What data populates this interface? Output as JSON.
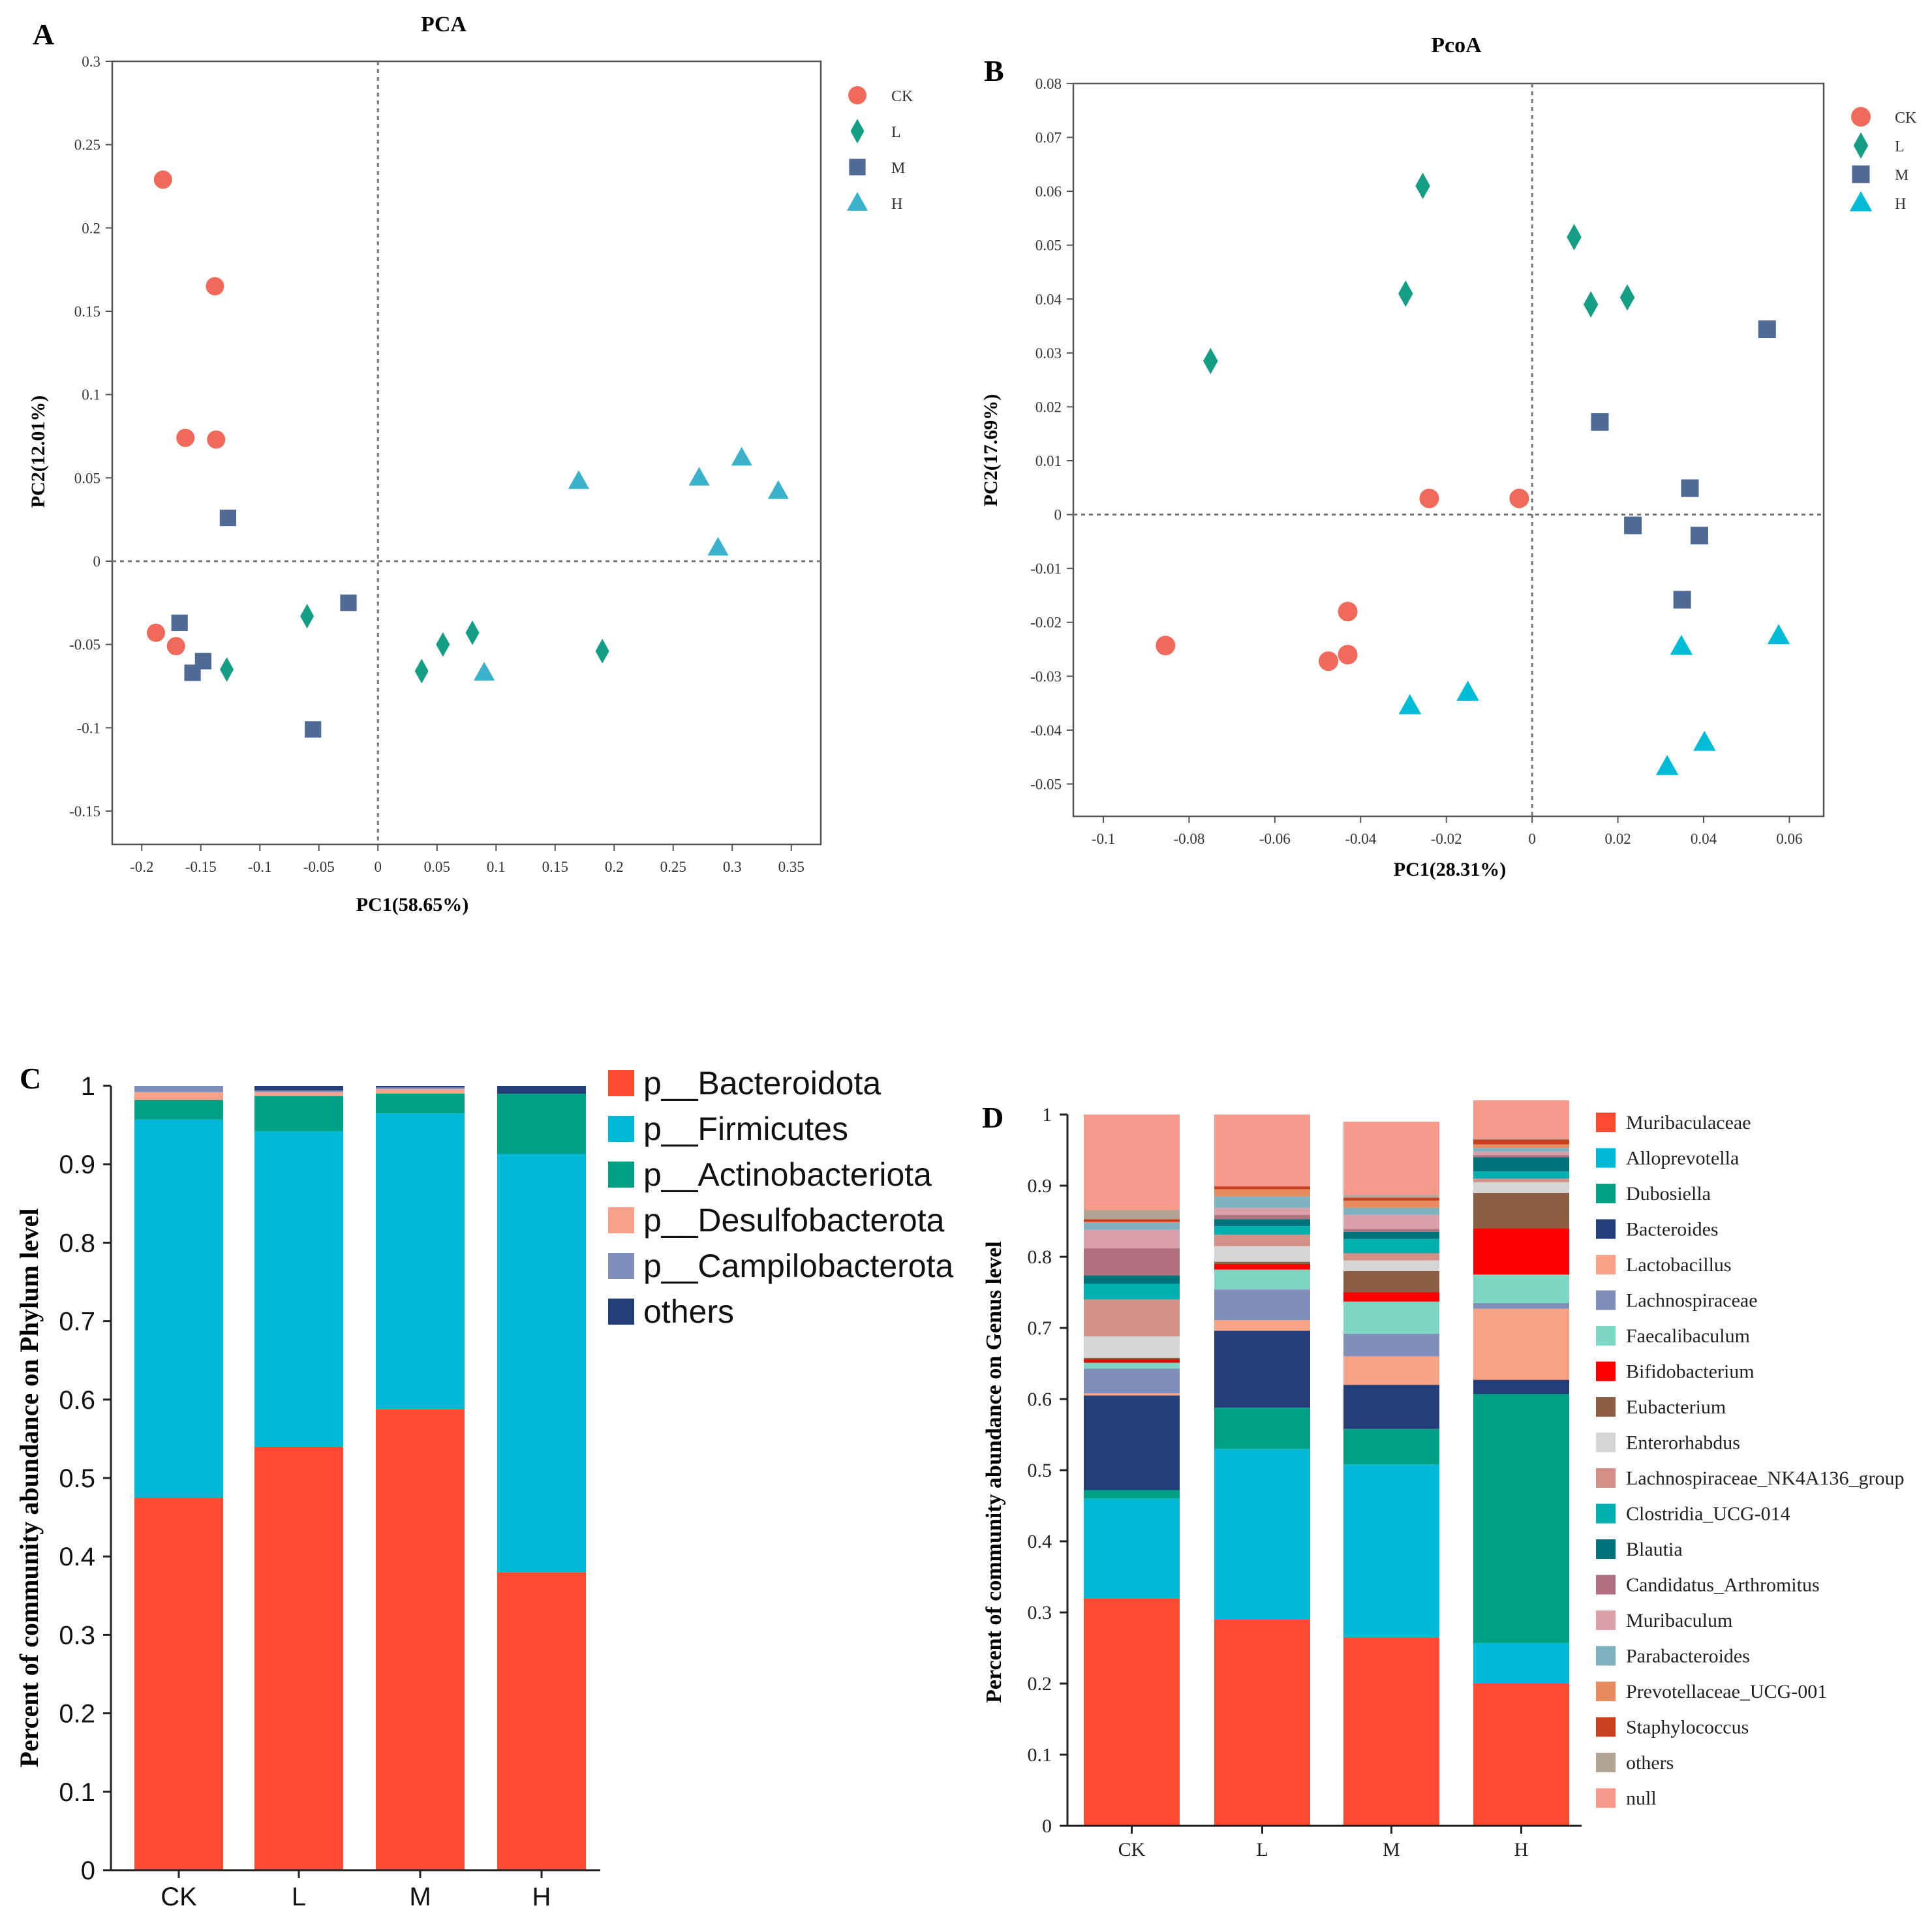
{
  "chart_data": [
    {
      "type": "scatter",
      "panel": "A",
      "title": "PCA",
      "xlabel": "PC1(58.65%)",
      "ylabel": "PC2(12.01%)",
      "xlim": [
        -0.225,
        0.375
      ],
      "ylim": [
        -0.17,
        0.3
      ],
      "xticks": [
        -0.2,
        -0.15,
        -0.1,
        -0.05,
        0,
        0.05,
        0.1,
        0.15,
        0.2,
        0.25,
        0.3,
        0.35
      ],
      "yticks": [
        -0.15,
        -0.1,
        -0.05,
        0,
        0.05,
        0.1,
        0.15,
        0.2,
        0.25,
        0.3
      ],
      "series": [
        {
          "name": "CK",
          "marker": "circle",
          "color": "#F0695A",
          "points": [
            [
              -0.182,
              0.229
            ],
            [
              -0.138,
              0.165
            ],
            [
              -0.163,
              0.074
            ],
            [
              -0.137,
              0.073
            ],
            [
              -0.188,
              -0.043
            ],
            [
              -0.171,
              -0.051
            ]
          ]
        },
        {
          "name": "L",
          "marker": "diamond",
          "color": "#139E85",
          "points": [
            [
              -0.128,
              -0.065
            ],
            [
              -0.06,
              -0.033
            ],
            [
              0.037,
              -0.066
            ],
            [
              0.055,
              -0.05
            ],
            [
              0.08,
              -0.043
            ],
            [
              0.19,
              -0.054
            ]
          ]
        },
        {
          "name": "M",
          "marker": "square",
          "color": "#4F6A96",
          "points": [
            [
              -0.127,
              0.026
            ],
            [
              -0.025,
              -0.025
            ],
            [
              -0.168,
              -0.037
            ],
            [
              -0.148,
              -0.06
            ],
            [
              -0.157,
              -0.067
            ],
            [
              -0.055,
              -0.101
            ]
          ]
        },
        {
          "name": "H",
          "marker": "triangle",
          "color": "#3BB2CB",
          "points": [
            [
              0.17,
              0.048
            ],
            [
              0.272,
              0.05
            ],
            [
              0.308,
              0.062
            ],
            [
              0.339,
              0.042
            ],
            [
              0.288,
              0.008
            ],
            [
              0.09,
              -0.067
            ]
          ]
        }
      ]
    },
    {
      "type": "scatter",
      "panel": "B",
      "title": "PcoA",
      "xlabel": "PC1(28.31%)",
      "ylabel": "PC2(17.69%)",
      "xlim": [
        -0.107,
        0.068
      ],
      "ylim": [
        -0.056,
        0.08
      ],
      "xticks": [
        -0.1,
        -0.08,
        -0.06,
        -0.04,
        -0.02,
        0,
        0.02,
        0.04,
        0.06
      ],
      "yticks": [
        0.08,
        0.07,
        0.06,
        0.05,
        0.04,
        0.03,
        0.02,
        0.01,
        0,
        -0.01,
        -0.02,
        -0.03,
        -0.04,
        -0.05
      ],
      "series": [
        {
          "name": "CK",
          "marker": "circle",
          "color": "#F0695A",
          "points": [
            [
              -0.0855,
              -0.0243
            ],
            [
              -0.0475,
              -0.0272
            ],
            [
              -0.043,
              -0.026
            ],
            [
              -0.043,
              -0.018
            ],
            [
              -0.024,
              0.003
            ],
            [
              -0.003,
              0.003
            ]
          ]
        },
        {
          "name": "L",
          "marker": "diamond",
          "color": "#139E85",
          "points": [
            [
              -0.075,
              0.0285
            ],
            [
              -0.0295,
              0.041
            ],
            [
              -0.0255,
              0.061
            ],
            [
              0.0098,
              0.0515
            ],
            [
              0.0137,
              0.039
            ],
            [
              0.0222,
              0.0403
            ]
          ]
        },
        {
          "name": "M",
          "marker": "square",
          "color": "#4F6A96",
          "points": [
            [
              0.0548,
              0.0344
            ],
            [
              0.0158,
              0.0172
            ],
            [
              0.0368,
              0.0049
            ],
            [
              0.0235,
              -0.002
            ],
            [
              0.039,
              -0.0039
            ],
            [
              0.035,
              -0.0158
            ]
          ]
        },
        {
          "name": "H",
          "marker": "triangle",
          "color": "#00BCD6",
          "points": [
            [
              -0.0285,
              -0.0355
            ],
            [
              -0.015,
              -0.033
            ],
            [
              0.0348,
              -0.0245
            ],
            [
              0.0575,
              -0.0225
            ],
            [
              0.0402,
              -0.0423
            ],
            [
              0.0315,
              -0.0468
            ]
          ]
        }
      ]
    },
    {
      "type": "stacked_bar",
      "panel": "C",
      "title": "",
      "xlabel": "",
      "ylabel": "Percent of community abundance on Phylum level",
      "ylim": [
        0,
        1
      ],
      "yticks": [
        "0",
        "0.1",
        "0.2",
        "0.3",
        "0.4",
        "0.5",
        "0.6",
        "0.7",
        "0.8",
        "0.9",
        "1"
      ],
      "categories": [
        "CK",
        "L",
        "M",
        "H"
      ],
      "series": [
        {
          "name": "p__Bacteroidota",
          "color": "#FE4A31",
          "values": [
            0.475,
            0.54,
            0.588,
            0.38
          ]
        },
        {
          "name": "p__Firmicutes",
          "color": "#00B9D6",
          "values": [
            0.482,
            0.402,
            0.377,
            0.533
          ]
        },
        {
          "name": "p__Actinobacteriota",
          "color": "#00A085",
          "values": [
            0.025,
            0.045,
            0.025,
            0.077
          ]
        },
        {
          "name": "p__Desulfobacterota",
          "color": "#F7A08A",
          "values": [
            0.01,
            0.005,
            0.006,
            0.0
          ]
        },
        {
          "name": "p__Campilobacterota",
          "color": "#7E8FBB",
          "values": [
            0.008,
            0.002,
            0.002,
            0.0
          ]
        },
        {
          "name": "others",
          "color": "#233E79",
          "values": [
            0.0,
            0.006,
            0.002,
            0.01
          ]
        }
      ]
    },
    {
      "type": "stacked_bar",
      "panel": "D",
      "title": "",
      "xlabel": "",
      "ylabel": "Percent of community abundance on Genus level",
      "ylim": [
        0,
        1
      ],
      "yticks": [
        "0",
        "0.1",
        "0.2",
        "0.3",
        "0.4",
        "0.5",
        "0.6",
        "0.7",
        "0.8",
        "0.9",
        "1"
      ],
      "categories": [
        "CK",
        "L",
        "M",
        "H"
      ],
      "series": [
        {
          "name": "Muribaculaceae",
          "color": "#FE4A31",
          "values": [
            0.32,
            0.29,
            0.265,
            0.2
          ]
        },
        {
          "name": "Alloprevotella",
          "color": "#00B9D6",
          "values": [
            0.14,
            0.24,
            0.243,
            0.057
          ]
        },
        {
          "name": "Dubosiella",
          "color": "#00A085",
          "values": [
            0.012,
            0.058,
            0.05,
            0.35
          ]
        },
        {
          "name": "Bacteroides",
          "color": "#233E79",
          "values": [
            0.133,
            0.108,
            0.062,
            0.02
          ]
        },
        {
          "name": "Lactobacillus",
          "color": "#F8A286",
          "values": [
            0.003,
            0.015,
            0.04,
            0.1
          ]
        },
        {
          "name": "Lachnospiraceae",
          "color": "#7F8FBA",
          "values": [
            0.035,
            0.043,
            0.032,
            0.008
          ]
        },
        {
          "name": "Faecalibaculum",
          "color": "#7ED6C5",
          "values": [
            0.008,
            0.028,
            0.045,
            0.04
          ]
        },
        {
          "name": "Bifidobacterium",
          "color": "#FF0000",
          "values": [
            0.005,
            0.008,
            0.013,
            0.065
          ]
        },
        {
          "name": "Eubacterium",
          "color": "#8C5F45",
          "values": [
            0.002,
            0.003,
            0.03,
            0.05
          ]
        },
        {
          "name": "Enterorhabdus",
          "color": "#D5D5D5",
          "values": [
            0.03,
            0.022,
            0.015,
            0.015
          ]
        },
        {
          "name": "Lachnospiraceae_NK4A136_group",
          "color": "#D49087",
          "values": [
            0.052,
            0.016,
            0.01,
            0.005
          ]
        },
        {
          "name": "Clostridia_UCG-014",
          "color": "#00AFAF",
          "values": [
            0.022,
            0.012,
            0.02,
            0.01
          ]
        },
        {
          "name": "Blautia",
          "color": "#00727A",
          "values": [
            0.012,
            0.01,
            0.01,
            0.02
          ]
        },
        {
          "name": "Candidatus_Arthromitus",
          "color": "#B07080",
          "values": [
            0.038,
            0.006,
            0.004,
            0.003
          ]
        },
        {
          "name": "Muribaculum",
          "color": "#D9A0AA",
          "values": [
            0.026,
            0.01,
            0.02,
            0.005
          ]
        },
        {
          "name": "Parabacteroides",
          "color": "#7FB2BF",
          "values": [
            0.01,
            0.016,
            0.01,
            0.005
          ]
        },
        {
          "name": "Prevotellaceae_UCG-001",
          "color": "#E88A60",
          "values": [
            0.001,
            0.01,
            0.01,
            0.005
          ]
        },
        {
          "name": "Staphylococcus",
          "color": "#C84020",
          "values": [
            0.004,
            0.004,
            0.004,
            0.007
          ]
        },
        {
          "name": "others",
          "color": "#B3A595",
          "values": [
            0.013,
            0.0,
            0.004,
            0.001
          ]
        },
        {
          "name": "null",
          "color": "#F7998A",
          "values": [
            0.134,
            0.101,
            0.103,
            0.054
          ]
        }
      ]
    }
  ]
}
